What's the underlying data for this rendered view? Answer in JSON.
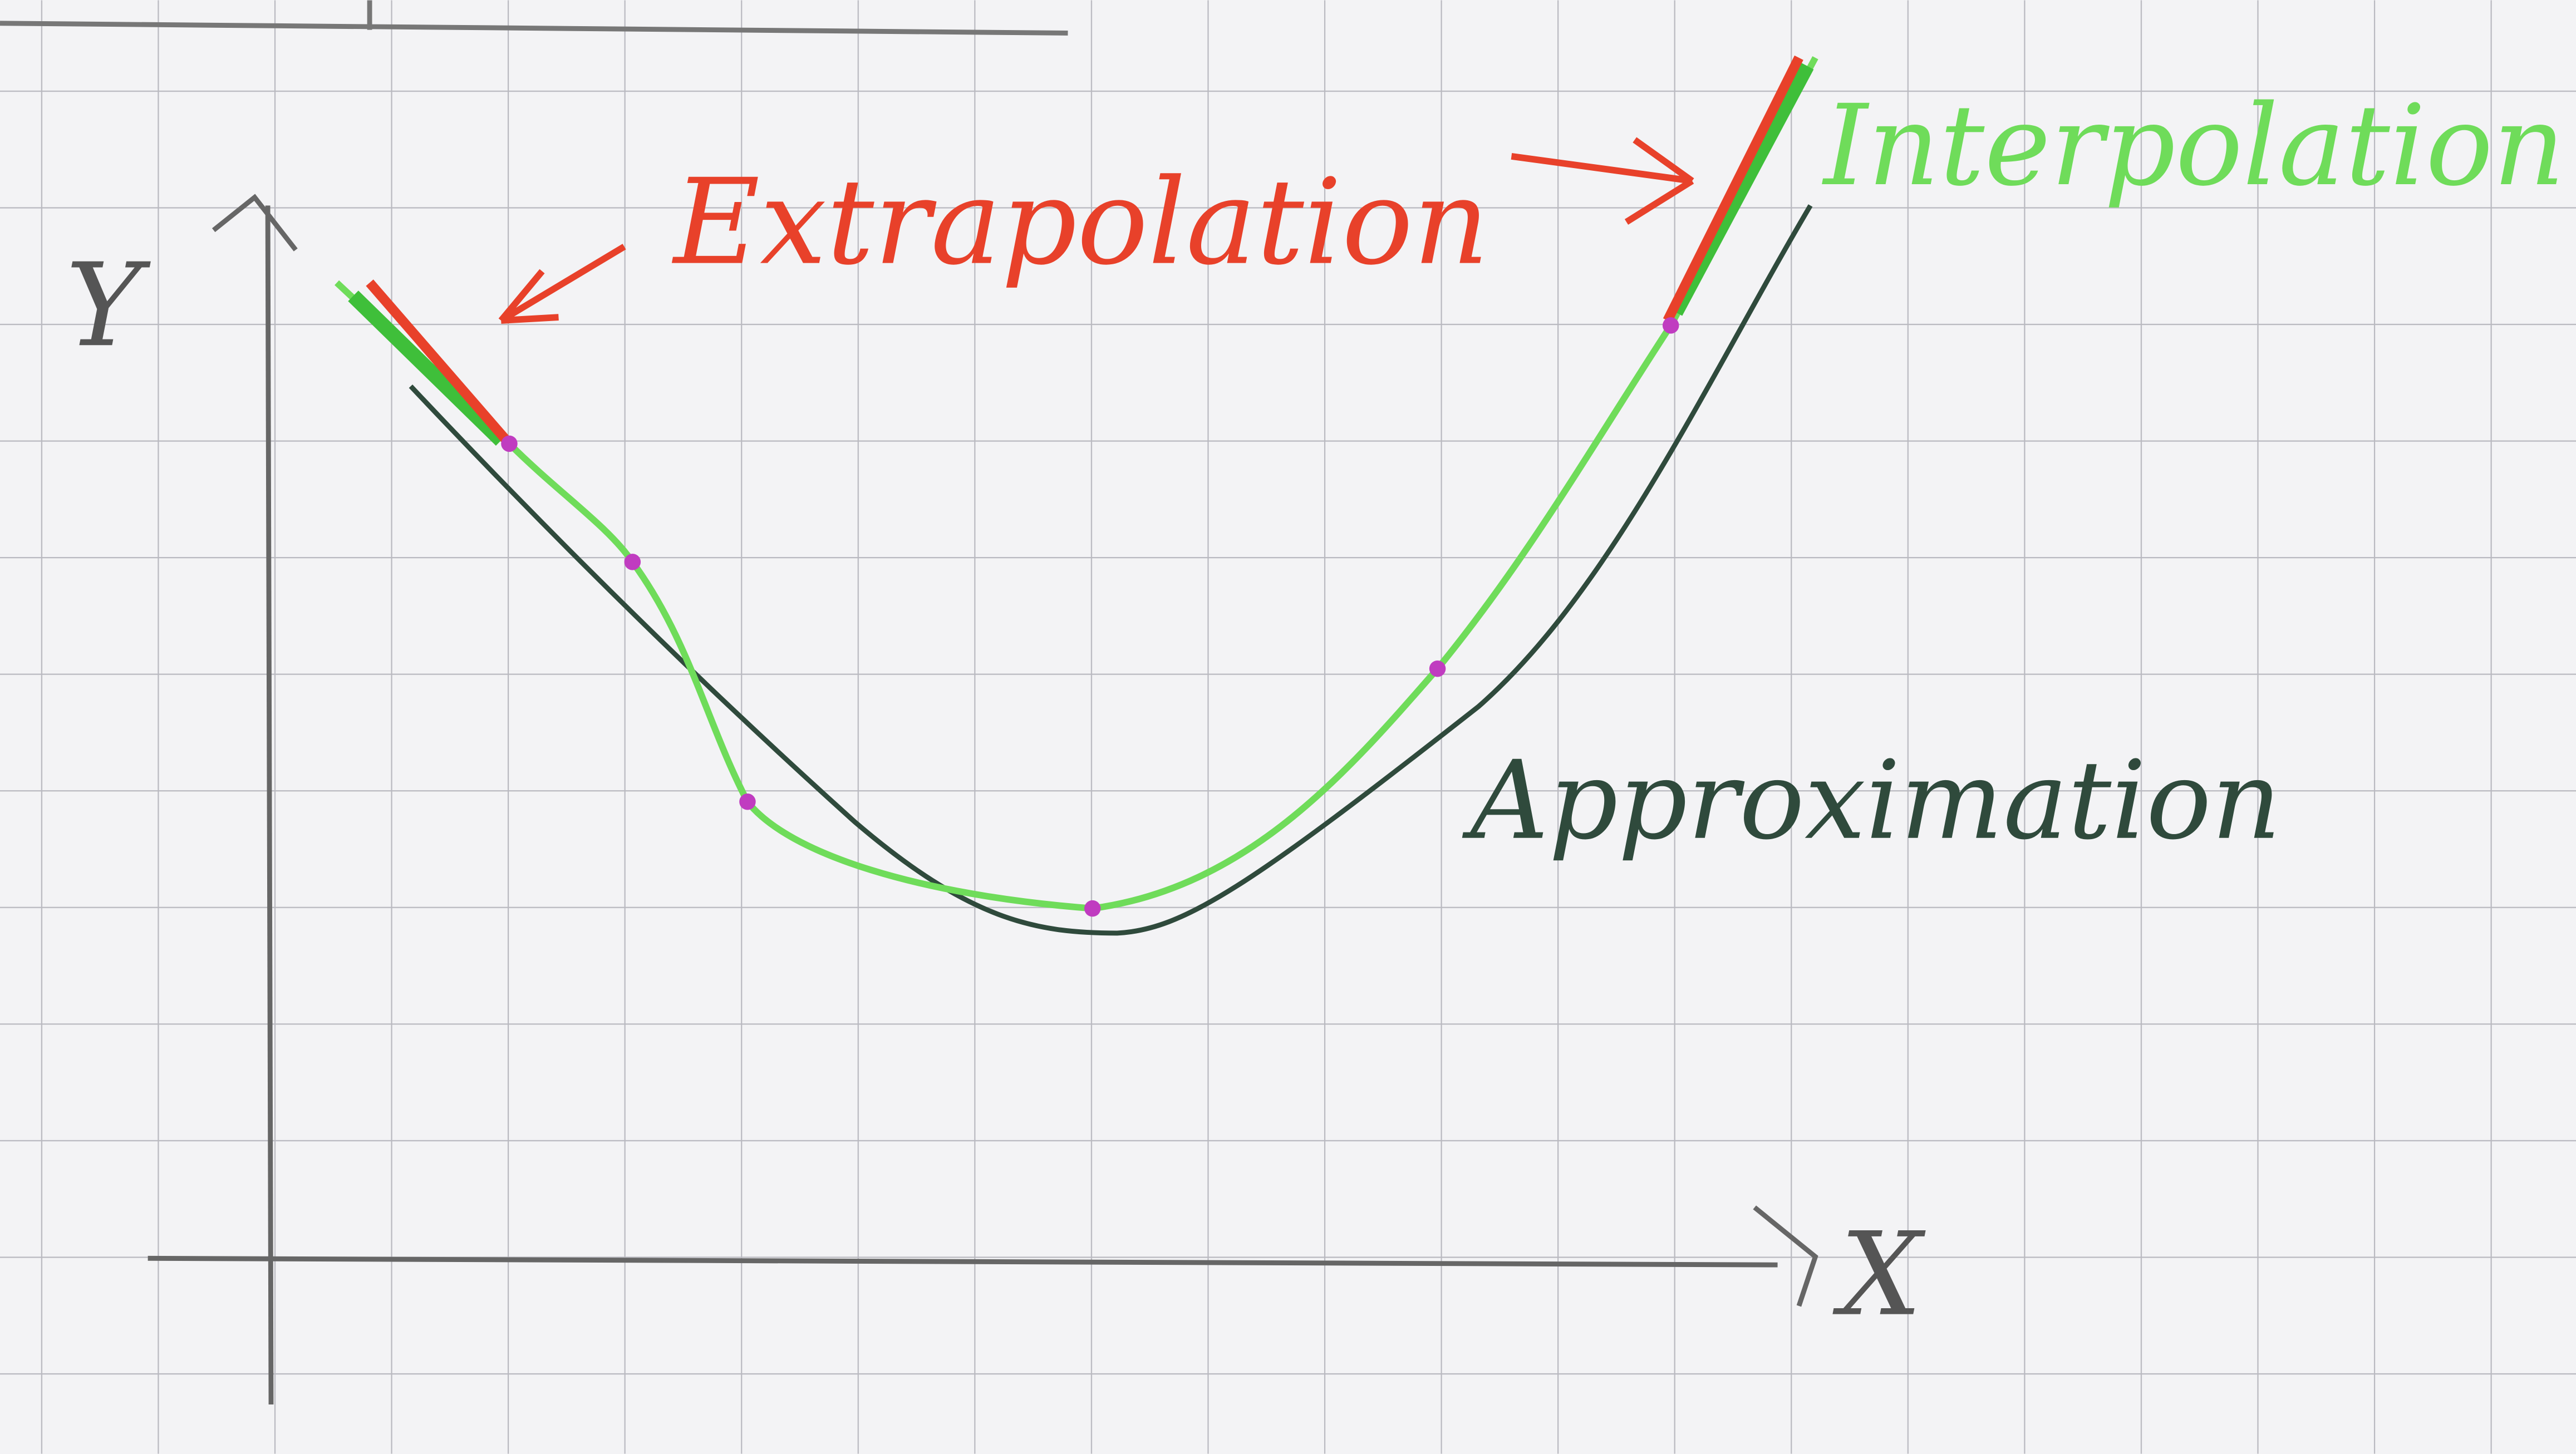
{
  "axes": {
    "y": "Y",
    "x": "X"
  },
  "labels": {
    "extrapolation": "Extrapolation",
    "interpolation": "Interpolation",
    "approximation": "Approximation"
  }
}
